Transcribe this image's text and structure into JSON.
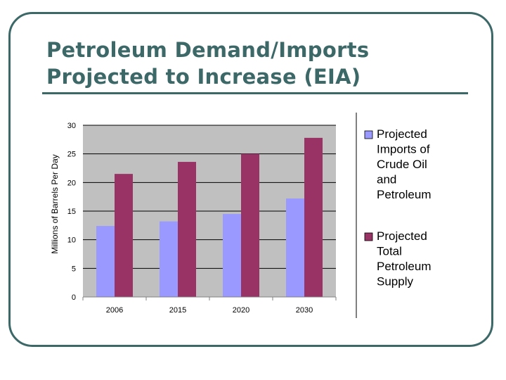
{
  "slide": {
    "title_line1": "Petroleum Demand/Imports",
    "title_line2": "Projected to Increase (EIA)"
  },
  "colors": {
    "frame": "#3d6868",
    "plot_background": "#c0c0c0",
    "series_imports": "#9999ff",
    "series_supply": "#993366"
  },
  "chart_data": {
    "type": "bar",
    "title": "",
    "xlabel": "",
    "ylabel": "Millions of Barrels Per Day",
    "categories": [
      "2006",
      "2015",
      "2020",
      "2030"
    ],
    "ylim": [
      0,
      30
    ],
    "yticks": [
      0,
      5,
      10,
      15,
      20,
      25,
      30
    ],
    "grid": true,
    "legend_position": "right",
    "series": [
      {
        "name": "Projected Imports of Crude Oil and Petroleum",
        "legend_lines": [
          "Projected",
          "Imports of",
          "Crude Oil",
          "and",
          "Petroleum"
        ],
        "color": "#9999ff",
        "values": [
          12.4,
          13.2,
          14.5,
          17.2
        ]
      },
      {
        "name": "Projected Total Petroleum Supply",
        "legend_lines": [
          "Projected",
          "Total",
          "Petroleum",
          "Supply"
        ],
        "color": "#993366",
        "values": [
          21.5,
          23.6,
          25.0,
          27.8
        ]
      }
    ]
  }
}
